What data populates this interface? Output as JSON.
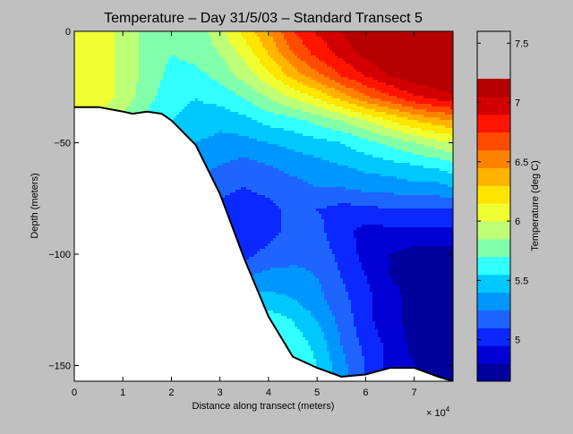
{
  "chart_data": {
    "type": "contour",
    "title": "Temperature – Day 31/5/03 – Standard Transect 5",
    "xlabel": "Distance along transect (meters)",
    "ylabel": "Depth (meters)",
    "x_multiplier_label": "× 10",
    "x_multiplier_exponent": "4",
    "x_ticks": [
      "0",
      "1",
      "2",
      "3",
      "4",
      "5",
      "6",
      "7"
    ],
    "y_ticks": [
      "0",
      "−50",
      "−100",
      "−150"
    ],
    "xlim": [
      0,
      78000
    ],
    "ylim": [
      -157,
      0
    ],
    "bathymetry": {
      "x": [
        0,
        5000,
        10000,
        12000,
        15000,
        18000,
        20000,
        25000,
        30000,
        35000,
        40000,
        45000,
        50000,
        55000,
        60000,
        65000,
        70000,
        75000,
        78000
      ],
      "depth": [
        -34,
        -34,
        -36,
        -37,
        -36,
        -37,
        -40,
        -51,
        -73,
        -102,
        -128,
        -146,
        -151,
        -155,
        -154,
        -151,
        -151,
        -155,
        -157
      ]
    },
    "colorbar": {
      "label": "Temperature (deg C)",
      "min": 4.65,
      "max": 7.6,
      "step": 0.15,
      "ticks": [
        "5",
        "5.5",
        "6",
        "6.5",
        "7",
        "7.5"
      ],
      "tick_values": [
        5,
        5.5,
        6,
        6.5,
        7,
        7.5
      ],
      "colors": [
        "#00009c",
        "#0000d4",
        "#0a28ff",
        "#1e64ff",
        "#0096ff",
        "#00c8ff",
        "#32ffff",
        "#82ffaa",
        "#beff78",
        "#f0ff32",
        "#ffe600",
        "#ffb400",
        "#ff8200",
        "#ff4b00",
        "#ff1400",
        "#d20000",
        "#b40000"
      ]
    },
    "temperature_grid": {
      "x": [
        0,
        5000,
        10000,
        15000,
        20000,
        25000,
        30000,
        35000,
        40000,
        45000,
        50000,
        55000,
        60000,
        65000,
        70000,
        75000,
        78000
      ],
      "depth": [
        0,
        -10,
        -20,
        -30,
        -40,
        -50,
        -60,
        -70,
        -80,
        -90,
        -100,
        -110,
        -120,
        -130,
        -140,
        -150,
        -157
      ],
      "values": [
        [
          6.15,
          6.1,
          5.95,
          5.8,
          5.7,
          5.75,
          5.95,
          6.2,
          6.45,
          6.75,
          6.9,
          7.05,
          7.2,
          7.35,
          7.45,
          7.55,
          7.6
        ],
        [
          6.15,
          6.1,
          5.95,
          5.8,
          5.7,
          5.75,
          5.85,
          6.05,
          6.3,
          6.6,
          6.8,
          6.95,
          7.1,
          7.25,
          7.35,
          7.45,
          7.5
        ],
        [
          6.15,
          6.1,
          5.95,
          5.8,
          5.65,
          5.65,
          5.75,
          5.9,
          6.1,
          6.35,
          6.55,
          6.75,
          6.9,
          7.05,
          7.15,
          7.2,
          7.25
        ],
        [
          6.15,
          6.1,
          5.95,
          5.75,
          5.6,
          5.55,
          5.6,
          5.7,
          5.85,
          6.0,
          6.15,
          6.35,
          6.55,
          6.7,
          6.85,
          6.95,
          7.0
        ],
        [
          5.9,
          5.9,
          5.8,
          5.65,
          5.55,
          5.5,
          5.45,
          5.5,
          5.6,
          5.65,
          5.75,
          5.85,
          6.0,
          6.15,
          6.3,
          6.4,
          6.45
        ],
        [
          5.8,
          5.8,
          5.7,
          5.6,
          5.5,
          5.4,
          5.35,
          5.35,
          5.4,
          5.45,
          5.5,
          5.55,
          5.65,
          5.75,
          5.85,
          5.95,
          6.0
        ],
        [
          5.7,
          5.7,
          5.6,
          5.5,
          5.4,
          5.3,
          5.25,
          5.2,
          5.25,
          5.3,
          5.35,
          5.4,
          5.45,
          5.5,
          5.55,
          5.6,
          5.65
        ],
        [
          5.6,
          5.6,
          5.5,
          5.4,
          5.3,
          5.2,
          5.15,
          5.1,
          5.15,
          5.2,
          5.25,
          5.25,
          5.3,
          5.3,
          5.35,
          5.35,
          5.4
        ],
        [
          5.5,
          5.5,
          5.4,
          5.3,
          5.2,
          5.1,
          5.05,
          5.0,
          5.05,
          5.15,
          5.1,
          5.05,
          5.05,
          5.1,
          5.1,
          5.1,
          5.1
        ],
        [
          5.4,
          5.4,
          5.3,
          5.2,
          5.1,
          5.05,
          5.0,
          4.95,
          5.05,
          5.15,
          5.15,
          5.0,
          4.9,
          4.9,
          4.9,
          4.9,
          4.9
        ],
        [
          5.3,
          5.3,
          5.2,
          5.1,
          5.05,
          5.0,
          5.0,
          5.05,
          5.15,
          5.2,
          5.2,
          5.05,
          4.9,
          4.8,
          4.75,
          4.75,
          4.75
        ],
        [
          5.3,
          5.3,
          5.2,
          5.1,
          5.05,
          5.1,
          5.15,
          5.25,
          5.3,
          5.3,
          5.25,
          5.1,
          4.95,
          4.8,
          4.75,
          4.7,
          4.7
        ],
        [
          5.3,
          5.3,
          5.2,
          5.15,
          5.15,
          5.25,
          5.35,
          5.45,
          5.45,
          5.4,
          5.3,
          5.15,
          5.0,
          4.85,
          4.75,
          4.7,
          4.7
        ],
        [
          5.3,
          5.3,
          5.25,
          5.2,
          5.25,
          5.4,
          5.55,
          5.65,
          5.65,
          5.55,
          5.4,
          5.2,
          5.0,
          4.85,
          4.75,
          4.7,
          4.7
        ],
        [
          5.3,
          5.3,
          5.3,
          5.3,
          5.35,
          5.5,
          5.65,
          5.75,
          5.75,
          5.65,
          5.5,
          5.25,
          5.05,
          4.9,
          4.75,
          4.7,
          4.7
        ],
        [
          5.3,
          5.3,
          5.3,
          5.3,
          5.4,
          5.55,
          5.7,
          5.8,
          5.8,
          5.7,
          5.55,
          5.3,
          5.1,
          4.9,
          4.8,
          4.7,
          4.7
        ],
        [
          5.3,
          5.3,
          5.3,
          5.3,
          5.4,
          5.55,
          5.7,
          5.8,
          5.8,
          5.7,
          5.55,
          5.3,
          5.1,
          4.9,
          4.8,
          4.7,
          4.7
        ]
      ]
    }
  }
}
